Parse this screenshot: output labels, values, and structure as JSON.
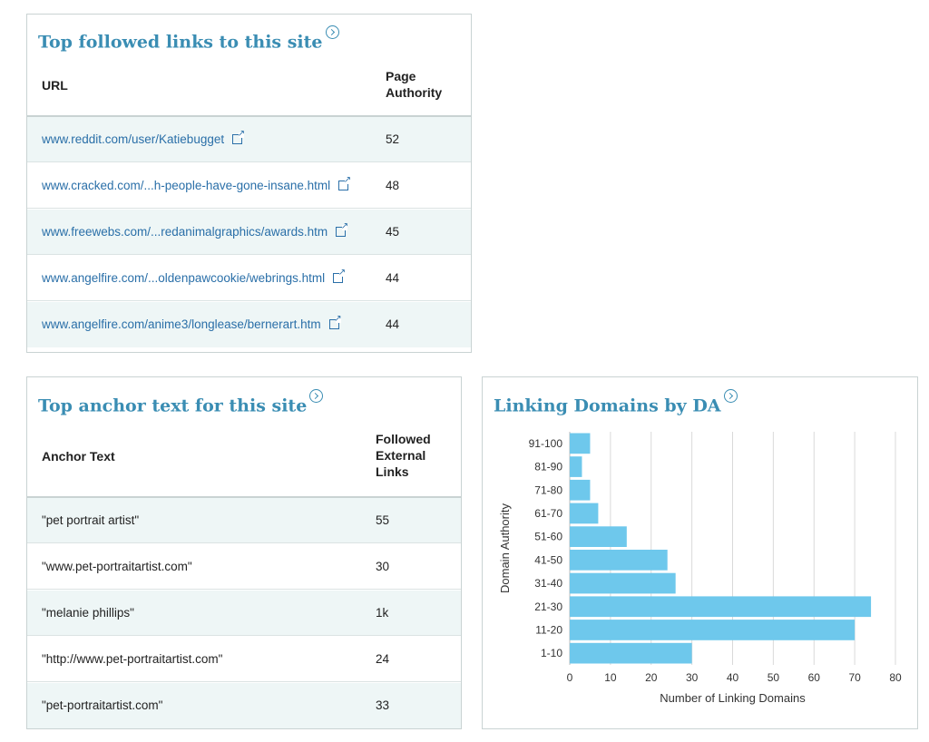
{
  "followed_links": {
    "title": "Top followed links to this site",
    "col_url": "URL",
    "col_pa_line1": "Page",
    "col_pa_line2": "Authority",
    "rows": [
      {
        "url": "www.reddit.com/user/Katiebugget",
        "pa": "52"
      },
      {
        "url": "www.cracked.com/...h-people-have-gone-insane.html",
        "pa": "48"
      },
      {
        "url": "www.freewebs.com/...redanimalgraphics/awards.htm",
        "pa": "45"
      },
      {
        "url": "www.angelfire.com/...oldenpawcookie/webrings.html",
        "pa": "44"
      },
      {
        "url": "www.angelfire.com/anime3/longlease/bernerart.htm",
        "pa": "44"
      }
    ]
  },
  "anchor_text": {
    "title": "Top anchor text for this site",
    "col_anchor": "Anchor Text",
    "col_fel_line1": "Followed",
    "col_fel_line2": "External",
    "col_fel_line3": "Links",
    "rows": [
      {
        "text": "\"pet portrait artist\"",
        "links": "55"
      },
      {
        "text": "\"www.pet-portraitartist.com\"",
        "links": "30"
      },
      {
        "text": "\"melanie phillips\"",
        "links": "1k"
      },
      {
        "text": "\"http://www.pet-portraitartist.com\"",
        "links": "24"
      },
      {
        "text": "\"pet-portraitartist.com\"",
        "links": "33"
      }
    ]
  },
  "chart_panel": {
    "title": "Linking Domains by DA"
  },
  "chart_data": {
    "type": "bar",
    "orientation": "horizontal",
    "categories": [
      "91-100",
      "81-90",
      "71-80",
      "61-70",
      "51-60",
      "41-50",
      "31-40",
      "21-30",
      "11-20",
      "1-10"
    ],
    "values": [
      5,
      3,
      5,
      7,
      14,
      24,
      26,
      74,
      70,
      30
    ],
    "xlabel": "Number of Linking Domains",
    "ylabel": "Domain Authority",
    "xlim": [
      0,
      80
    ],
    "xticks": [
      0,
      10,
      20,
      30,
      40,
      50,
      60,
      70,
      80
    ],
    "grid": true,
    "bar_color": "#6ec8ec"
  },
  "colors": {
    "title": "#3a8db3",
    "link": "#2a6fa8",
    "alt_row": "#eef6f6",
    "border": "#c9d3d3"
  }
}
